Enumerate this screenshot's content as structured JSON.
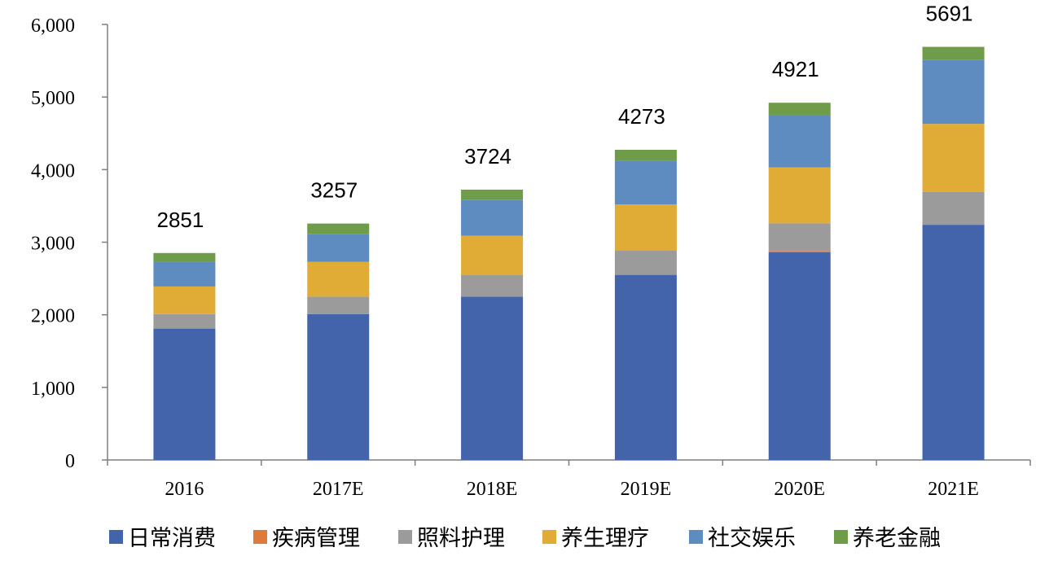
{
  "chart_data": {
    "type": "bar",
    "stacked": true,
    "categories": [
      "2016",
      "2017E",
      "2018E",
      "2019E",
      "2020E",
      "2021E"
    ],
    "series": [
      {
        "name": "日常消费",
        "color": "#4364AA",
        "values": [
          1810,
          2010,
          2250,
          2550,
          2860,
          3240
        ]
      },
      {
        "name": "疾病管理",
        "color": "#DD7A3C",
        "values": [
          0,
          0,
          0,
          0,
          20,
          0
        ]
      },
      {
        "name": "照料护理",
        "color": "#9B9B9B",
        "values": [
          200,
          240,
          300,
          340,
          380,
          450
        ]
      },
      {
        "name": "养生理疗",
        "color": "#E0AC35",
        "values": [
          380,
          480,
          540,
          630,
          770,
          940
        ]
      },
      {
        "name": "社交娱乐",
        "color": "#5E8BC0",
        "values": [
          340,
          380,
          490,
          600,
          720,
          880
        ]
      },
      {
        "name": "养老金融",
        "color": "#6F9C49",
        "values": [
          121,
          147,
          144,
          153,
          171,
          181
        ]
      }
    ],
    "totals": [
      "2851",
      "3257",
      "3724",
      "4273",
      "4921",
      "5691"
    ],
    "ylim": [
      0,
      6000
    ],
    "yticks": [
      0,
      1000,
      2000,
      3000,
      4000,
      5000,
      6000
    ],
    "ytick_labels": [
      "0",
      "1,000",
      "2,000",
      "3,000",
      "4,000",
      "5,000",
      "6,000"
    ],
    "grid": false,
    "legend_position": "bottom"
  }
}
